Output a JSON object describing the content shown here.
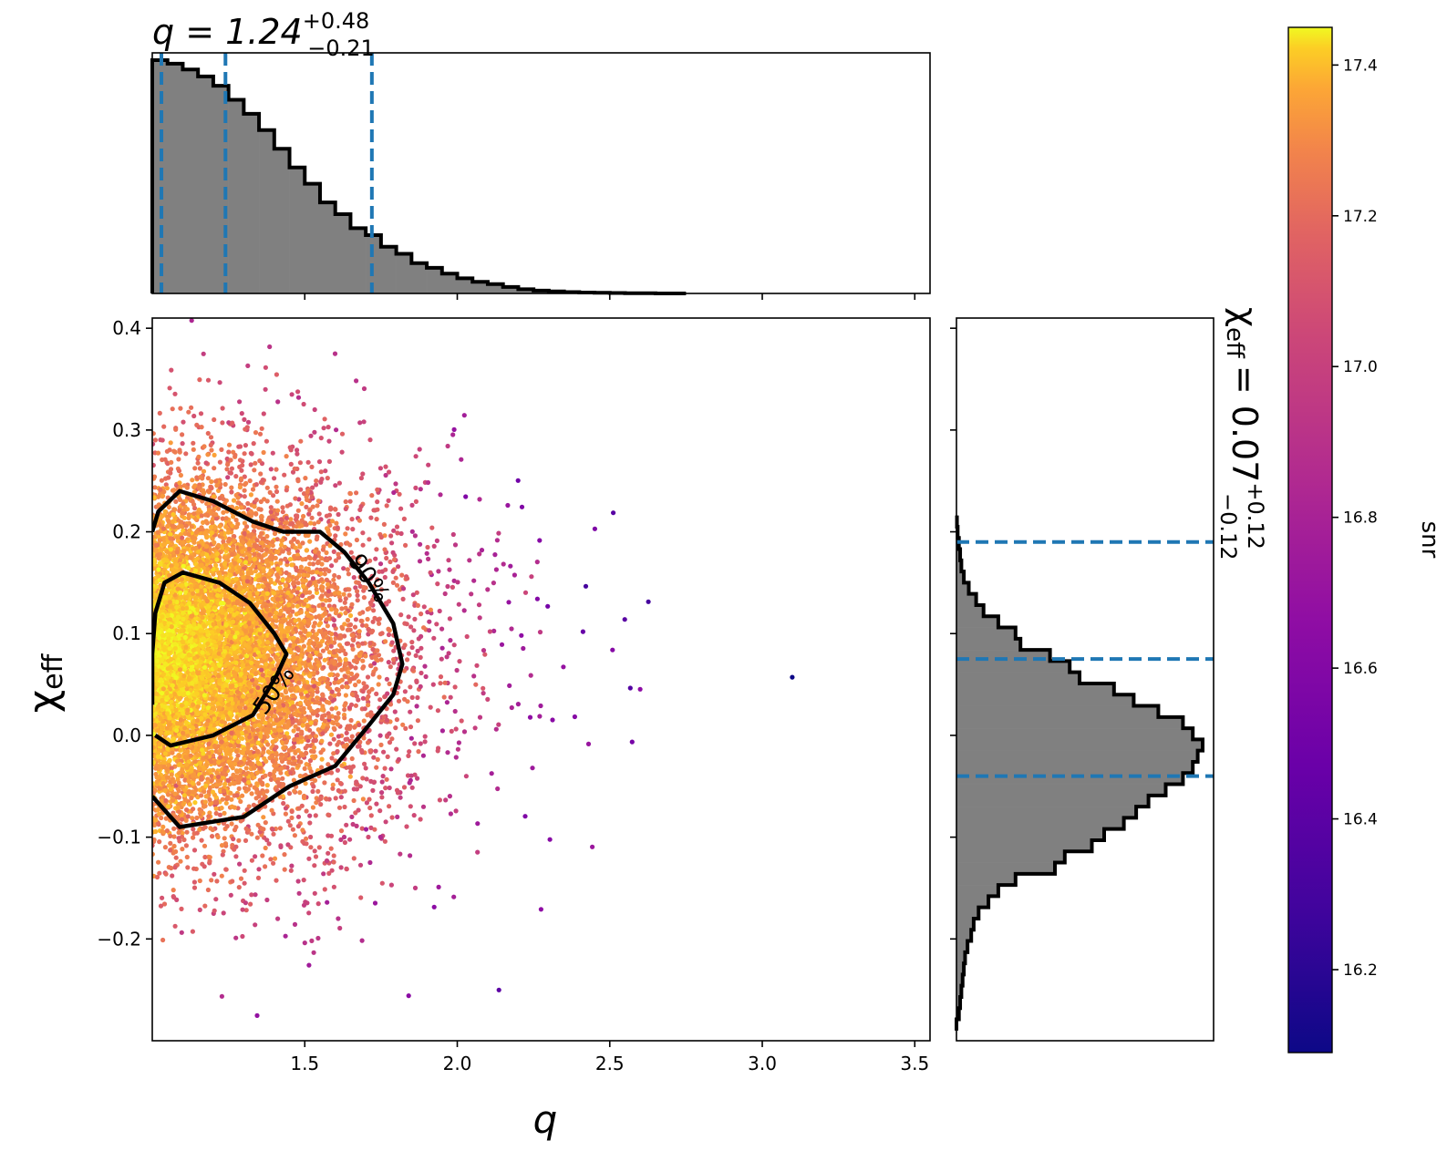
{
  "chart_data": [
    {
      "type": "scatter",
      "name": "main",
      "xlabel": "q",
      "ylabel_main": "χ",
      "ylabel_sub": "eff",
      "xlim": [
        1.0,
        3.55
      ],
      "ylim": [
        -0.3,
        0.41
      ],
      "x_ticks": [
        1.5,
        2.0,
        2.5,
        3.0,
        3.5
      ],
      "x_tick_labels": [
        "1.5",
        "2.0",
        "2.5",
        "3.0",
        "3.5"
      ],
      "y_ticks": [
        -0.2,
        -0.1,
        0.0,
        0.1,
        0.2,
        0.3,
        0.4
      ],
      "y_tick_labels": [
        "−0.2",
        "−0.1",
        "0.0",
        "0.1",
        "0.2",
        "0.3",
        "0.4"
      ],
      "color_by": "snr",
      "density_center": {
        "q": 1.2,
        "chi_eff": 0.08
      },
      "contours": [
        {
          "label": "50%",
          "points": [
            [
              1.01,
              0.0
            ],
            [
              1.06,
              -0.01
            ],
            [
              1.2,
              0.0
            ],
            [
              1.33,
              0.02
            ],
            [
              1.41,
              0.06
            ],
            [
              1.44,
              0.08
            ],
            [
              1.4,
              0.1
            ],
            [
              1.32,
              0.13
            ],
            [
              1.22,
              0.15
            ],
            [
              1.1,
              0.16
            ],
            [
              1.04,
              0.15
            ],
            [
              1.01,
              0.12
            ],
            [
              1.0,
              0.08
            ],
            [
              1.0,
              0.03
            ]
          ]
        },
        {
          "label": "90%",
          "points": [
            [
              1.0,
              -0.06
            ],
            [
              1.09,
              -0.09
            ],
            [
              1.3,
              -0.08
            ],
            [
              1.45,
              -0.05
            ],
            [
              1.6,
              -0.03
            ],
            [
              1.71,
              0.01
            ],
            [
              1.79,
              0.04
            ],
            [
              1.82,
              0.07
            ],
            [
              1.79,
              0.11
            ],
            [
              1.71,
              0.15
            ],
            [
              1.63,
              0.18
            ],
            [
              1.55,
              0.2
            ],
            [
              1.43,
              0.2
            ],
            [
              1.33,
              0.21
            ],
            [
              1.2,
              0.23
            ],
            [
              1.09,
              0.24
            ],
            [
              1.02,
              0.22
            ],
            [
              1.0,
              0.2
            ]
          ]
        }
      ]
    },
    {
      "type": "bar",
      "name": "q_marginal",
      "title_prefix": "q = 1.24",
      "title_sup": "+0.48",
      "title_sub": "−0.21",
      "bin_edges_start": 1.0,
      "bin_width": 0.05,
      "values": [
        1.0,
        0.985,
        0.96,
        0.93,
        0.89,
        0.83,
        0.77,
        0.7,
        0.62,
        0.54,
        0.47,
        0.39,
        0.34,
        0.28,
        0.25,
        0.2,
        0.17,
        0.13,
        0.11,
        0.085,
        0.065,
        0.05,
        0.04,
        0.028,
        0.018,
        0.012,
        0.009,
        0.006,
        0.004,
        0.003,
        0.002,
        0.001,
        0.001,
        0.0,
        0.0
      ],
      "quantile_lines": [
        1.03,
        1.24,
        1.72
      ],
      "line_color": "#1f77b4"
    },
    {
      "type": "bar",
      "name": "chi_eff_marginal",
      "orientation": "horizontal",
      "title_prefix": "χ",
      "title_sub_symbol": "eff",
      "title_value": "= 0.07",
      "title_sup": "+0.12",
      "title_sub": "−0.12",
      "bin_edges_start": -0.29,
      "bin_width": 0.011,
      "values": [
        0.0,
        0.01,
        0.015,
        0.02,
        0.025,
        0.03,
        0.035,
        0.045,
        0.06,
        0.07,
        0.09,
        0.13,
        0.17,
        0.24,
        0.4,
        0.44,
        0.55,
        0.6,
        0.68,
        0.73,
        0.78,
        0.85,
        0.92,
        0.96,
        0.98,
        1.0,
        0.96,
        0.92,
        0.82,
        0.72,
        0.64,
        0.5,
        0.46,
        0.38,
        0.26,
        0.24,
        0.17,
        0.11,
        0.08,
        0.05,
        0.03,
        0.02,
        0.015,
        0.01,
        0.005,
        0.002
      ],
      "quantile_lines": [
        -0.04,
        0.075,
        0.19
      ],
      "line_color": "#1f77b4"
    },
    {
      "type": "heatmap",
      "name": "colorbar",
      "label": "snr",
      "colormap": "plasma",
      "range": [
        16.09,
        17.45
      ],
      "ticks": [
        16.2,
        16.4,
        16.6,
        16.8,
        17.0,
        17.2,
        17.4
      ],
      "tick_labels": [
        "16.2",
        "16.4",
        "16.6",
        "16.8",
        "17.0",
        "17.2",
        "17.4"
      ]
    }
  ],
  "contour_labels": {
    "inner": "50%",
    "outer": "90%"
  }
}
